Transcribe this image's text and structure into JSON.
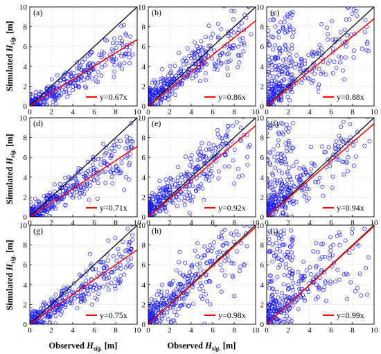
{
  "chart_data": {
    "type": "scatter",
    "layout": "3x3 grid of scatter panels",
    "xlabel": {
      "prefix": "Observed ",
      "symbol": "H",
      "subscript": "sig.",
      "suffix": " [m]"
    },
    "ylabel": {
      "prefix": "Simulated ",
      "symbol": "H",
      "subscript": "sig.",
      "suffix": " [m]"
    },
    "xlim": [
      0,
      10
    ],
    "ylim": [
      0,
      10
    ],
    "xticks": [
      0,
      2,
      4,
      6,
      8,
      10
    ],
    "yticks": [
      0,
      2,
      4,
      6,
      8,
      10
    ],
    "grid": true,
    "colors": {
      "points": "#1a1aff",
      "fit_line": "#ff0000",
      "identity_line": "#000000",
      "grid": "#d9d9d9"
    },
    "legend_position": "bottom-right",
    "panels": [
      {
        "label": "(a)",
        "fit_slope": 0.67,
        "legend": "y=0.67x",
        "fit_line_end_y": 6.7
      },
      {
        "label": "(b)",
        "fit_slope": 0.86,
        "legend": "y=0.86x",
        "fit_line_end_y": 8.6
      },
      {
        "label": "(c)",
        "fit_slope": 0.88,
        "legend": "y=0.88x",
        "fit_line_end_y": 8.8
      },
      {
        "label": "(d)",
        "fit_slope": 0.71,
        "legend": "y=0.71x",
        "fit_line_end_y": 7.1
      },
      {
        "label": "(e)",
        "fit_slope": 0.92,
        "legend": "y=0.92x",
        "fit_line_end_y": 9.2
      },
      {
        "label": "(f)",
        "fit_slope": 0.94,
        "legend": "y=0.94x",
        "fit_line_end_y": 9.4
      },
      {
        "label": "(g)",
        "fit_slope": 0.75,
        "legend": "y=0.75x",
        "fit_line_end_y": 7.5
      },
      {
        "label": "(h)",
        "fit_slope": 0.98,
        "legend": "y=0.98x",
        "fit_line_end_y": 9.8
      },
      {
        "label": "(i)",
        "fit_slope": 0.99,
        "legend": "y=0.99x",
        "fit_line_end_y": 9.9
      }
    ]
  }
}
